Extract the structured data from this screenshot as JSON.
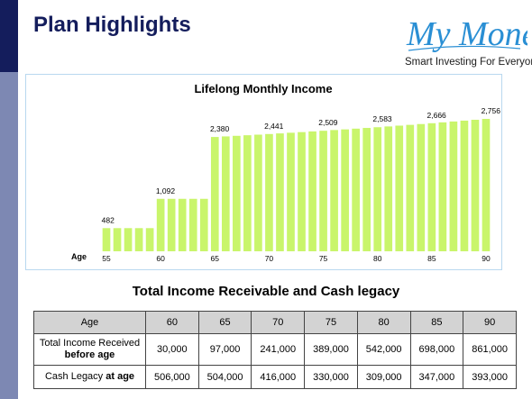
{
  "header": {
    "title": "Plan Highlights",
    "logo_text": "My Money",
    "tagline": "Smart Investing For Everyone."
  },
  "colors": {
    "bar": "#c9f56b",
    "title": "#141d5c",
    "logo": "#2a8fd4",
    "sidebar_dark": "#141d5c",
    "sidebar_light": "#7d88b3"
  },
  "chart_data": {
    "type": "bar",
    "title": "Lifelong Monthly Income",
    "xlabel": "Age",
    "ylabel": "",
    "x": [
      55,
      56,
      57,
      58,
      59,
      60,
      61,
      62,
      63,
      64,
      65,
      66,
      67,
      68,
      69,
      70,
      71,
      72,
      73,
      74,
      75,
      76,
      77,
      78,
      79,
      80,
      81,
      82,
      83,
      84,
      85,
      86,
      87,
      88,
      89,
      90
    ],
    "values": [
      482,
      482,
      482,
      482,
      482,
      1092,
      1092,
      1092,
      1092,
      1092,
      2380,
      2392,
      2404,
      2416,
      2428,
      2441,
      2454,
      2468,
      2481,
      2495,
      2509,
      2524,
      2538,
      2553,
      2568,
      2583,
      2599,
      2616,
      2632,
      2649,
      2666,
      2684,
      2702,
      2720,
      2738,
      2756
    ],
    "data_labels": [
      {
        "x": 55,
        "text": "482"
      },
      {
        "x": 60,
        "text": "1,092"
      },
      {
        "x": 65,
        "text": "2,380"
      },
      {
        "x": 70,
        "text": "2,441"
      },
      {
        "x": 75,
        "text": "2,509"
      },
      {
        "x": 80,
        "text": "2,583"
      },
      {
        "x": 85,
        "text": "2,666"
      },
      {
        "x": 90,
        "text": "2,756"
      }
    ],
    "xticks": [
      "55",
      "60",
      "65",
      "70",
      "75",
      "80",
      "85",
      "90"
    ],
    "ylim": [
      0,
      3000
    ],
    "grid": false,
    "legend": "none"
  },
  "table": {
    "subtitle": "Total Income Receivable and Cash legacy",
    "header_label": "Age",
    "ages": [
      "60",
      "65",
      "70",
      "75",
      "80",
      "85",
      "90"
    ],
    "row1_label_line1": "Total Income Received",
    "row1_label_line2": "before age",
    "row1": [
      "30,000",
      "97,000",
      "241,000",
      "389,000",
      "542,000",
      "698,000",
      "861,000"
    ],
    "row2_label_pre": "Cash Legacy ",
    "row2_label_bold": "at age",
    "row2": [
      "506,000",
      "504,000",
      "416,000",
      "330,000",
      "309,000",
      "347,000",
      "393,000"
    ]
  }
}
